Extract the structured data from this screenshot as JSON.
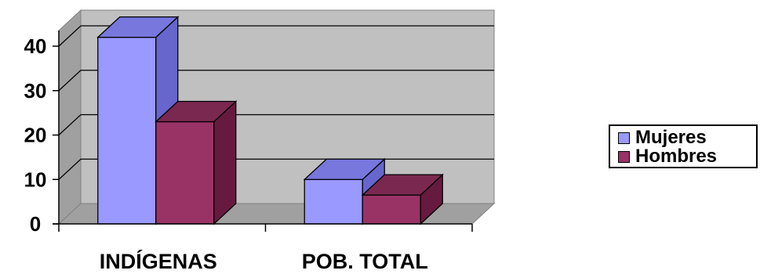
{
  "chart_data": {
    "type": "bar",
    "categories": [
      "INDÍGENAS",
      "POB. TOTAL"
    ],
    "series": [
      {
        "name": "Mujeres",
        "values": [
          42,
          10
        ],
        "color": "#9999FF",
        "side_color": "#6666CC",
        "top_color": "#7777DD"
      },
      {
        "name": "Hombres",
        "values": [
          23,
          6.5
        ],
        "color": "#993366",
        "side_color": "#661A3F",
        "top_color": "#7A2850"
      }
    ],
    "yticks": [
      0,
      10,
      20,
      30,
      40
    ],
    "ylim": [
      0,
      40
    ],
    "grid": true,
    "wall_color": "#C0C0C0",
    "legend_position": "right",
    "three_d": true
  }
}
